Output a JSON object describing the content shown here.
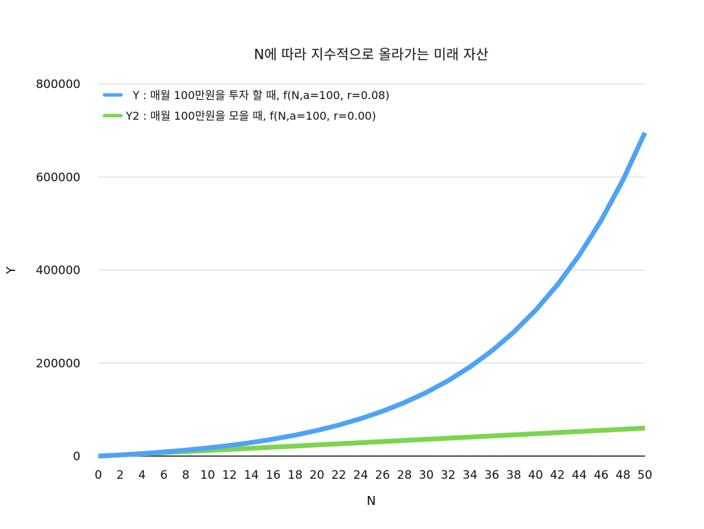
{
  "chart_data": {
    "type": "line",
    "title": "N에 따라 지수적으로 올라가는 미래 자산",
    "xlabel": "N",
    "ylabel": "Y",
    "xlim": [
      0,
      50
    ],
    "ylim": [
      0,
      800000
    ],
    "x_ticks": [
      0,
      2,
      4,
      6,
      8,
      10,
      12,
      14,
      16,
      18,
      20,
      22,
      24,
      26,
      28,
      30,
      32,
      34,
      36,
      38,
      40,
      42,
      44,
      46,
      48,
      50
    ],
    "y_ticks": [
      0,
      200000,
      400000,
      600000,
      800000
    ],
    "grid": "horizontal",
    "legend_position": "top-left",
    "x": [
      0,
      2,
      4,
      6,
      8,
      10,
      12,
      14,
      16,
      18,
      20,
      22,
      24,
      26,
      28,
      30,
      32,
      34,
      36,
      38,
      40,
      42,
      44,
      46,
      48,
      50
    ],
    "series": [
      {
        "name": "Y : 매월 100만원을 투자 할 때, f(N,a=100, r=0.08)",
        "color": "#4fa3f5",
        "values": [
          0,
          2492,
          5400,
          8798,
          12766,
          17392,
          22797,
          29110,
          36471,
          45055,
          55067,
          66776,
          80447,
          96396,
          115004,
          136740,
          162074,
          191642,
          226144,
          266393,
          313347,
          368133,
          432035,
          506601,
          593617,
          695073
        ]
      },
      {
        "name": "Y2 : 매월 100만원을 모을 때, f(N,a=100, r=0.00)",
        "color": "#7dd44f",
        "values": [
          0,
          2400,
          4800,
          7200,
          9600,
          12000,
          14400,
          16800,
          19200,
          21600,
          24000,
          26400,
          28800,
          31200,
          33600,
          36000,
          38400,
          40800,
          43200,
          45600,
          48000,
          50400,
          52800,
          55200,
          57600,
          60000
        ]
      }
    ]
  }
}
